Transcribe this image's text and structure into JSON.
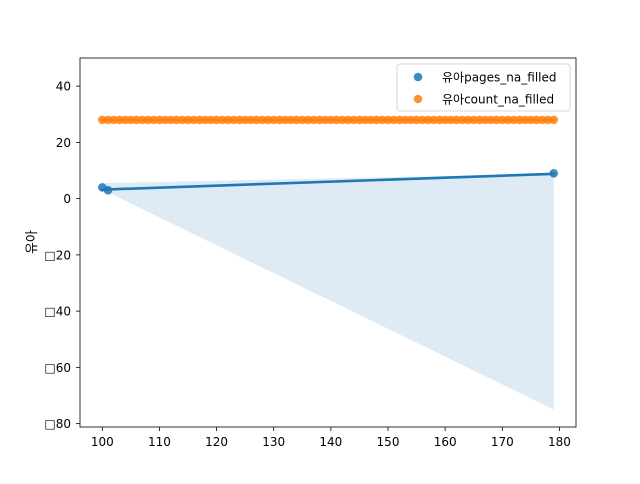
{
  "chart_data": {
    "type": "scatter",
    "title": "",
    "xlabel": "",
    "ylabel": "유아",
    "xlim": [
      96.1,
      182.9
    ],
    "ylim": [
      -81.2,
      50.0
    ],
    "x_ticks": [
      100,
      110,
      120,
      130,
      140,
      150,
      160,
      170,
      180
    ],
    "y_ticks": [
      40,
      20,
      0,
      -20,
      -40,
      -60,
      -80
    ],
    "x_tick_labels": [
      "100",
      "110",
      "120",
      "130",
      "140",
      "150",
      "160",
      "170",
      "180"
    ],
    "y_tick_labels": [
      "40",
      "20",
      "0",
      "□20",
      "□40",
      "□60",
      "□80"
    ],
    "grid": false,
    "legend": "top-right",
    "series": [
      {
        "name": "유아pages_na_filled",
        "color": "#1f77b4",
        "points": [
          [
            100,
            4
          ],
          [
            101,
            3
          ],
          [
            179,
            9
          ]
        ],
        "regression": {
          "x": [
            100,
            179
          ],
          "y": [
            3.2,
            8.8
          ]
        },
        "ci_band": {
          "x": [
            100,
            179
          ],
          "upper": [
            5.5,
            8.8
          ],
          "lower": [
            3.2,
            -75
          ]
        }
      },
      {
        "name": "유아count_na_filled",
        "color": "#ff7f0e",
        "x_start": 100,
        "x_end": 179,
        "x_step": 1,
        "y_constant": 28,
        "regression": {
          "x": [
            100,
            179
          ],
          "y": [
            28,
            28
          ]
        }
      }
    ]
  }
}
